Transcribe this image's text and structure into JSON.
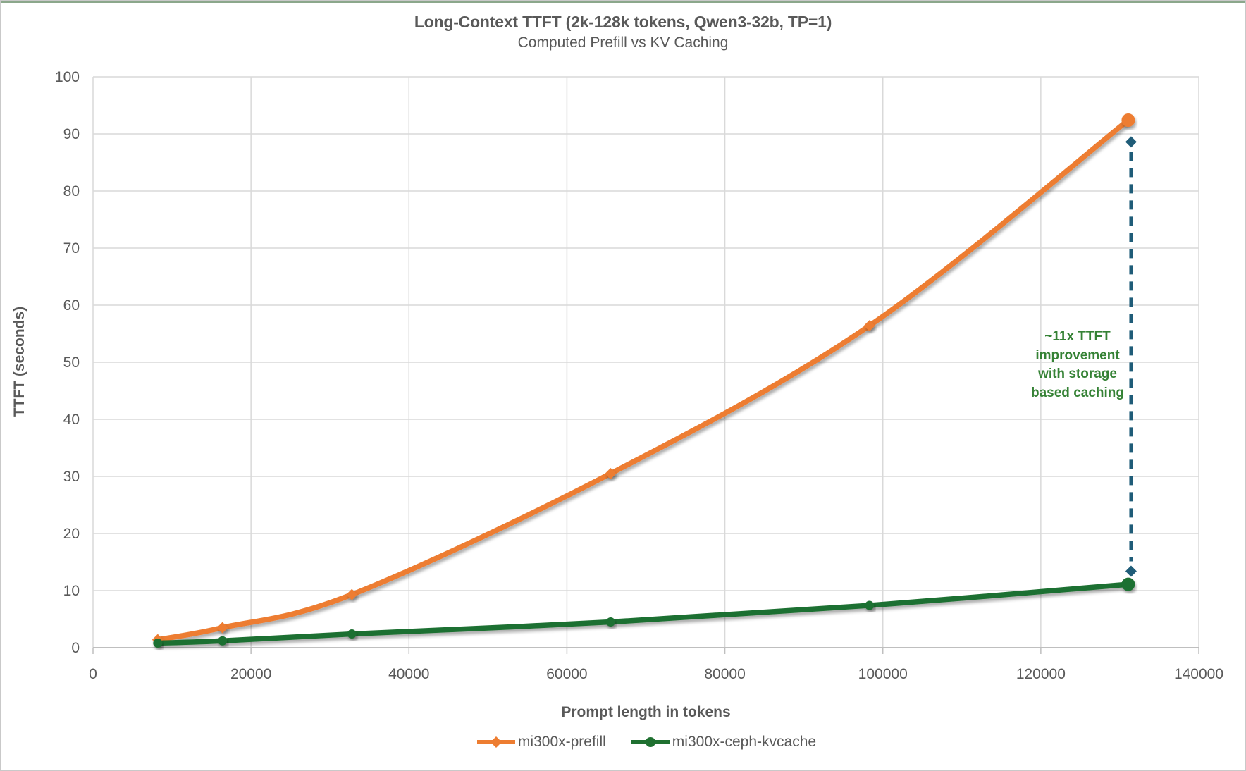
{
  "window": {
    "top_strip_color": "#8ba78b"
  },
  "title": "Long-Context TTFT (2k-128k tokens, Qwen3-32b, TP=1)",
  "subtitle": "Computed Prefill vs KV Caching",
  "chart_data": {
    "type": "line",
    "title": "Long-Context TTFT (2k-128k tokens, Qwen3-32b, TP=1)",
    "subtitle": "Computed Prefill vs KV Caching",
    "xlabel": "Prompt length in tokens",
    "ylabel": "TTFT (seconds)",
    "xlim": [
      0,
      140000
    ],
    "ylim": [
      0,
      100
    ],
    "grid": true,
    "legend_position": "bottom",
    "x_ticks": [
      0,
      20000,
      40000,
      60000,
      80000,
      100000,
      120000,
      140000
    ],
    "x_tick_labels": [
      "0",
      "20000",
      "40000",
      "60000",
      "80000",
      "100000",
      "120000",
      "140000"
    ],
    "y_ticks": [
      0,
      10,
      20,
      30,
      40,
      50,
      60,
      70,
      80,
      90,
      100
    ],
    "y_tick_labels": [
      "0",
      "10",
      "20",
      "30",
      "40",
      "50",
      "60",
      "70",
      "80",
      "90",
      "100"
    ],
    "x": [
      8192,
      16384,
      32768,
      65536,
      98304,
      131072
    ],
    "series": [
      {
        "name": "mi300x-prefill",
        "color": "#ed7d31",
        "marker": "diamond",
        "values": [
          1.4,
          3.5,
          9.3,
          30.5,
          56.4,
          92.4
        ]
      },
      {
        "name": "mi300x-ceph-kvcache",
        "color": "#1f7030",
        "marker": "circle",
        "values": [
          0.8,
          1.2,
          2.4,
          4.5,
          7.4,
          11.1
        ]
      }
    ],
    "annotation": {
      "text_lines": [
        "~11x TTFT",
        "improvement",
        "with storage",
        "based caching"
      ],
      "text_color": "#358235",
      "dashed_line": {
        "x": 131072,
        "y_from": 13.4,
        "y_to": 88.6,
        "color": "#1f5c78",
        "style": "dashed",
        "marker": "diamond"
      }
    },
    "colors": {
      "gridline": "#d9d9d9",
      "axis_line": "#bfbfbf",
      "tick_text": "#595959"
    }
  }
}
